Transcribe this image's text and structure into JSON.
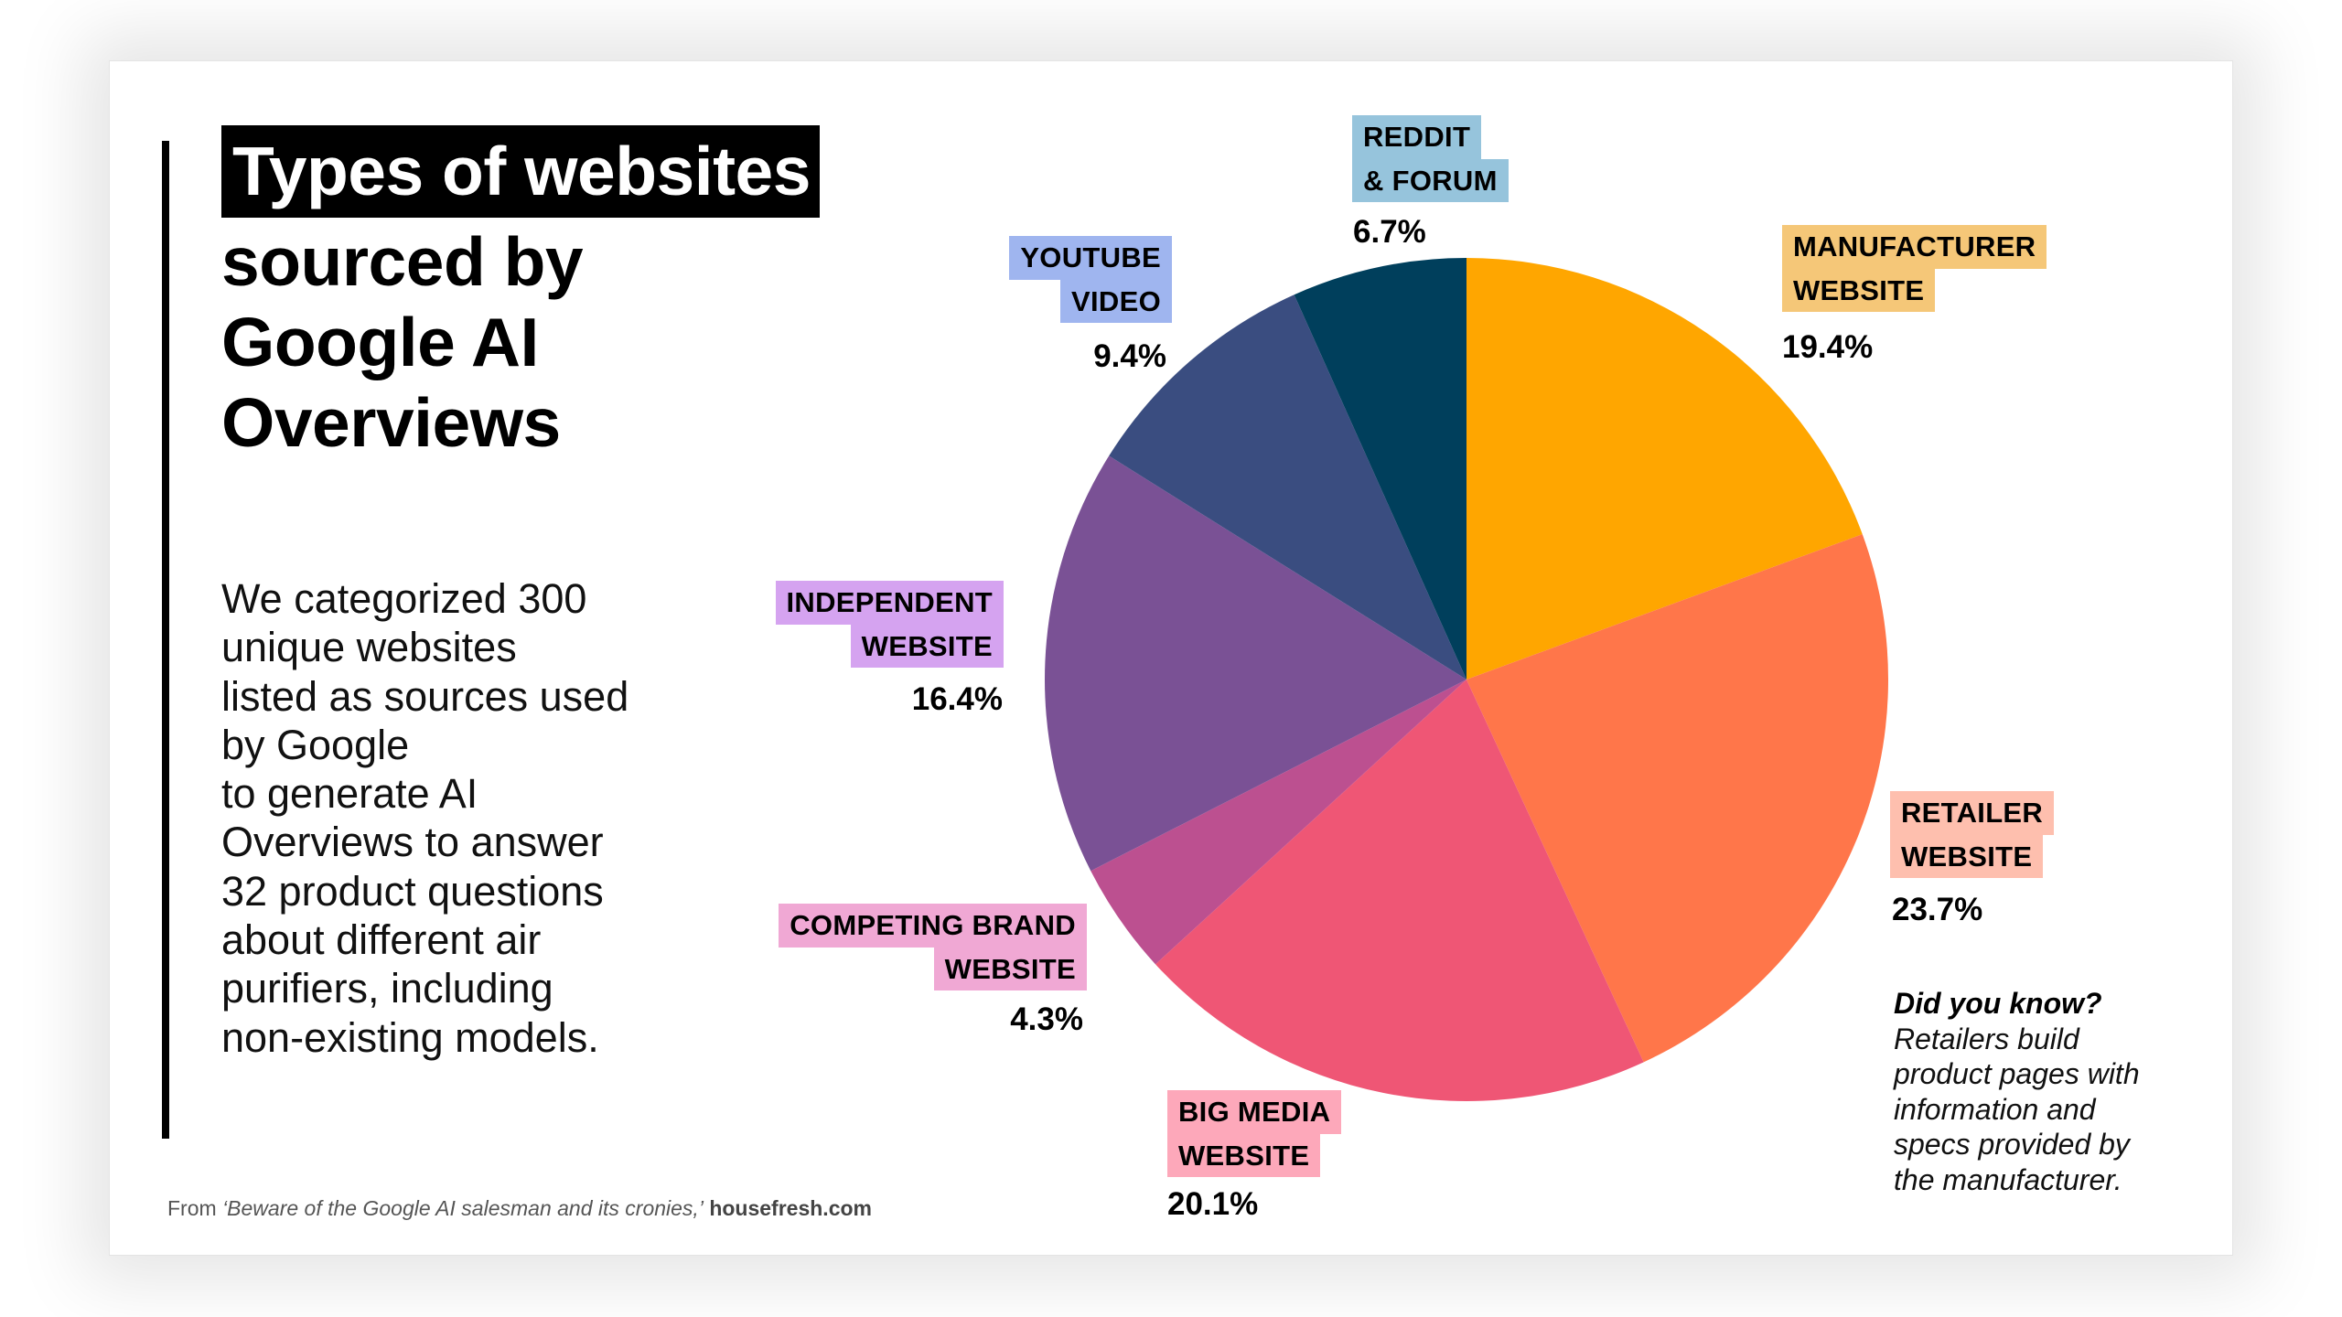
{
  "title": {
    "highlight": "Types of websites",
    "lines": [
      "sourced by",
      "Google AI",
      "Overviews"
    ]
  },
  "description": {
    "lines": [
      "We categorized 300",
      "unique websites",
      "listed as sources used",
      "by Google",
      "to generate AI",
      "Overviews to answer",
      "32 product questions",
      "about different air",
      "purifiers, including",
      "non-existing models."
    ]
  },
  "footer": {
    "prefix": "From ",
    "article": "‘Beware of the Google AI salesman and its cronies,’",
    "site": "housefresh.com"
  },
  "did_you_know": {
    "heading": "Did you know?",
    "lines": [
      "Retailers build",
      "product pages with",
      "information and",
      "specs provided by",
      "the manufacturer."
    ]
  },
  "labels": {
    "manufacturer": {
      "line1": "MANUFACTURER",
      "line2": "WEBSITE",
      "pct": "19.4%"
    },
    "retailer": {
      "line1": "RETAILER",
      "line2": "WEBSITE",
      "pct": "23.7%"
    },
    "big_media": {
      "line1": "BIG MEDIA",
      "line2": "WEBSITE",
      "pct": "20.1%"
    },
    "competing": {
      "line1": "COMPETING BRAND",
      "line2": "WEBSITE",
      "pct": "4.3%"
    },
    "independent": {
      "line1": "INDEPENDENT",
      "line2": "WEBSITE",
      "pct": "16.4%"
    },
    "youtube": {
      "line1": "YOUTUBE",
      "line2": "VIDEO",
      "pct": "9.4%"
    },
    "reddit": {
      "line1": "REDDIT",
      "line2": "& FORUM",
      "pct": "6.7%"
    }
  },
  "chart_data": {
    "type": "pie",
    "title": "Types of websites sourced by Google AI Overviews",
    "subtitle": "We categorized 300 unique websites listed as sources used by Google to generate AI Overviews to answer 32 product questions about different air purifiers, including non-existing models.",
    "categories": [
      "Manufacturer website",
      "Retailer website",
      "Big media website",
      "Competing brand website",
      "Independent website",
      "YouTube video",
      "Reddit & forum"
    ],
    "values": [
      19.4,
      23.7,
      20.1,
      4.3,
      16.4,
      9.4,
      6.7
    ],
    "unit": "%",
    "start_angle": "12 o'clock",
    "direction": "clockwise",
    "colors": [
      "#FFA600",
      "#FF764A",
      "#EF5675",
      "#BC5090",
      "#7A5195",
      "#3A4D80",
      "#003F5C"
    ],
    "label_colors": [
      "#F5C778",
      "#FEBFAE",
      "#FDA8BA",
      "#F0A8D4",
      "#D5A3F0",
      "#9FB5EF",
      "#96C4DC"
    ],
    "legend": "none (direct labels)",
    "annotation": "Did you know? Retailers build product pages with information and specs provided by the manufacturer.",
    "source": "From ‘Beware of the Google AI salesman and its cronies,’ housefresh.com"
  }
}
